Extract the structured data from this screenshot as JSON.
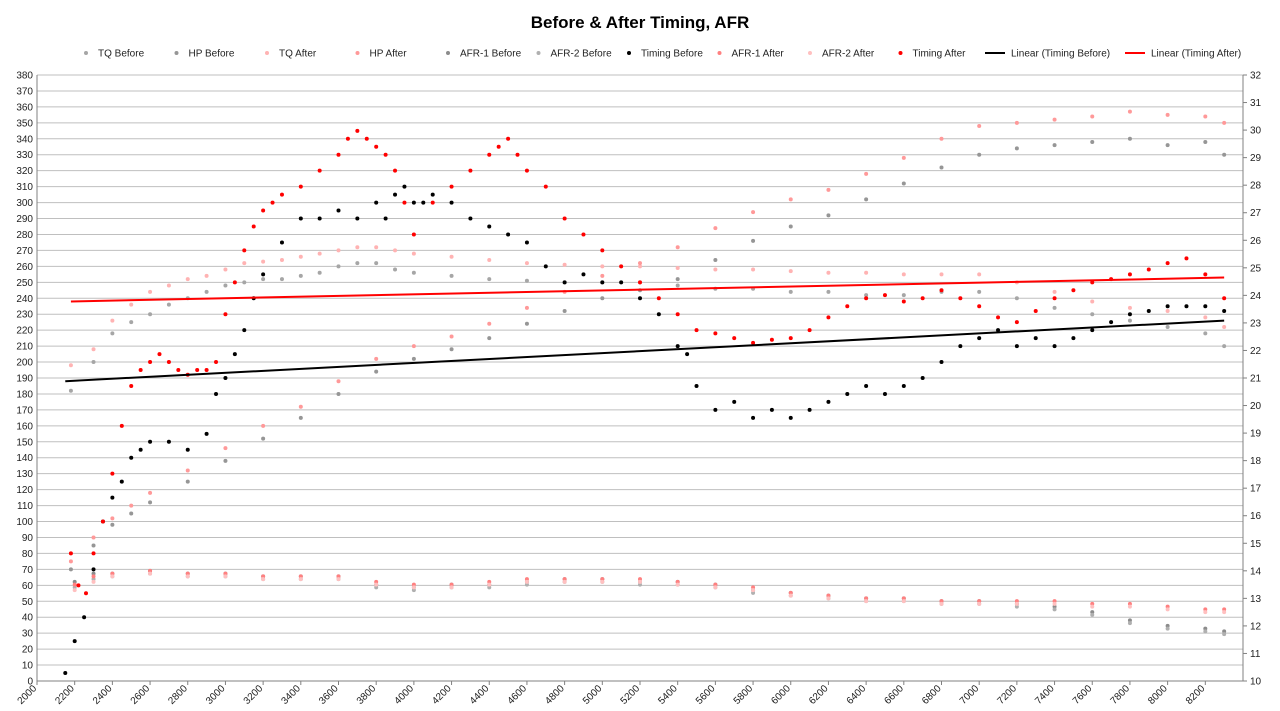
{
  "chart_data": {
    "type": "scatter",
    "title": "Before & After Timing, AFR",
    "xlabel": "",
    "ylabel": "",
    "x_range": [
      2000,
      8400
    ],
    "x_ticks": [
      2000,
      2200,
      2400,
      2600,
      2800,
      3000,
      3200,
      3400,
      3600,
      3800,
      4000,
      4200,
      4400,
      4600,
      4800,
      5000,
      5200,
      5400,
      5600,
      5800,
      6000,
      6200,
      6400,
      6600,
      6800,
      7000,
      7200,
      7400,
      7600,
      7800,
      8000,
      8200
    ],
    "y_left_range": [
      0,
      380
    ],
    "y_left_ticks": [
      0,
      10,
      20,
      30,
      40,
      50,
      60,
      70,
      80,
      90,
      100,
      110,
      120,
      130,
      140,
      150,
      160,
      170,
      180,
      190,
      200,
      210,
      220,
      230,
      240,
      250,
      260,
      270,
      280,
      290,
      300,
      310,
      320,
      330,
      340,
      350,
      360,
      370,
      380
    ],
    "y_right_range": [
      10,
      32
    ],
    "y_right_ticks": [
      10,
      11,
      12,
      13,
      14,
      15,
      16,
      17,
      18,
      19,
      20,
      21,
      22,
      23,
      24,
      25,
      26,
      27,
      28,
      29,
      30,
      31,
      32
    ],
    "grid": "horizontal",
    "legend_position": "top",
    "series": [
      {
        "name": "TQ Before",
        "color": "#a6a6a6",
        "axis": "left",
        "x": [
          2180,
          2300,
          2400,
          2500,
          2600,
          2700,
          2800,
          2900,
          3000,
          3100,
          3200,
          3300,
          3400,
          3500,
          3600,
          3700,
          3800,
          3900,
          4000,
          4200,
          4400,
          4600,
          4800,
          5000,
          5200,
          5400,
          5600,
          5800,
          6000,
          6200,
          6400,
          6600,
          6800,
          7000,
          7200,
          7400,
          7600,
          7800,
          8000,
          8200,
          8300
        ],
        "y": [
          182,
          200,
          218,
          225,
          230,
          236,
          240,
          244,
          248,
          250,
          252,
          252,
          254,
          256,
          260,
          262,
          262,
          258,
          256,
          254,
          252,
          251,
          250,
          250,
          250,
          248,
          246,
          246,
          244,
          244,
          242,
          242,
          244,
          244,
          240,
          234,
          230,
          226,
          222,
          218,
          210
        ]
      },
      {
        "name": "HP Before",
        "color": "#969696",
        "axis": "left",
        "x": [
          2180,
          2300,
          2400,
          2500,
          2600,
          2800,
          3000,
          3200,
          3400,
          3600,
          3800,
          4000,
          4200,
          4400,
          4600,
          4800,
          5000,
          5200,
          5400,
          5600,
          5800,
          6000,
          6200,
          6400,
          6600,
          6800,
          7000,
          7200,
          7400,
          7600,
          7800,
          8000,
          8200,
          8300
        ],
        "y": [
          70,
          85,
          98,
          105,
          112,
          125,
          138,
          152,
          165,
          180,
          194,
          202,
          208,
          215,
          224,
          232,
          240,
          245,
          252,
          264,
          276,
          285,
          292,
          302,
          312,
          322,
          330,
          334,
          336,
          338,
          340,
          336,
          338,
          330
        ]
      },
      {
        "name": "TQ After",
        "color": "#ffb3b3",
        "axis": "left",
        "x": [
          2180,
          2300,
          2400,
          2500,
          2600,
          2700,
          2800,
          2900,
          3000,
          3100,
          3200,
          3300,
          3400,
          3500,
          3600,
          3700,
          3800,
          3900,
          4000,
          4200,
          4400,
          4600,
          4800,
          5000,
          5200,
          5400,
          5600,
          5800,
          6000,
          6200,
          6400,
          6600,
          6800,
          7000,
          7200,
          7400,
          7600,
          7800,
          8000,
          8200,
          8300
        ],
        "y": [
          198,
          208,
          226,
          236,
          244,
          248,
          252,
          254,
          258,
          262,
          263,
          264,
          266,
          268,
          270,
          272,
          272,
          270,
          268,
          266,
          264,
          262,
          261,
          260,
          260,
          259,
          258,
          258,
          257,
          256,
          256,
          255,
          255,
          255,
          250,
          244,
          238,
          234,
          232,
          228,
          222
        ]
      },
      {
        "name": "HP After",
        "color": "#ff9999",
        "axis": "left",
        "x": [
          2180,
          2300,
          2400,
          2500,
          2600,
          2800,
          3000,
          3200,
          3400,
          3600,
          3800,
          4000,
          4200,
          4400,
          4600,
          4800,
          5000,
          5200,
          5400,
          5600,
          5800,
          6000,
          6200,
          6400,
          6600,
          6800,
          7000,
          7200,
          7400,
          7600,
          7800,
          8000,
          8200,
          8300
        ],
        "y": [
          75,
          90,
          102,
          110,
          118,
          132,
          146,
          160,
          172,
          188,
          202,
          210,
          216,
          224,
          234,
          244,
          254,
          262,
          272,
          284,
          294,
          302,
          308,
          318,
          328,
          340,
          348,
          350,
          352,
          354,
          357,
          355,
          354,
          350
        ]
      },
      {
        "name": "AFR-1 Before",
        "color": "#8c8c8c",
        "axis": "right",
        "x": [
          2200,
          2300,
          2400,
          2600,
          2800,
          3000,
          3200,
          3400,
          3600,
          3800,
          4000,
          4200,
          4400,
          4600,
          4800,
          5000,
          5200,
          5400,
          5600,
          5800,
          6000,
          6200,
          6400,
          6600,
          6800,
          7000,
          7200,
          7400,
          7600,
          7800,
          8000,
          8200,
          8300
        ],
        "y": [
          13.6,
          13.9,
          13.9,
          14.0,
          13.9,
          13.9,
          13.8,
          13.8,
          13.8,
          13.5,
          13.4,
          13.5,
          13.5,
          13.6,
          13.7,
          13.7,
          13.6,
          13.6,
          13.5,
          13.3,
          13.2,
          13.1,
          13.0,
          13.0,
          12.9,
          12.9,
          12.8,
          12.7,
          12.5,
          12.2,
          12.0,
          11.9,
          11.8
        ]
      },
      {
        "name": "AFR-2 Before",
        "color": "#b0b0b0",
        "axis": "right",
        "x": [
          2200,
          2300,
          2400,
          2600,
          2800,
          3000,
          3200,
          3400,
          3600,
          3800,
          4000,
          4200,
          4400,
          4600,
          4800,
          5000,
          5200,
          5400,
          5600,
          5800,
          6000,
          6200,
          6400,
          6600,
          6800,
          7000,
          7200,
          7400,
          7600,
          7800,
          8000,
          8200,
          8300
        ],
        "y": [
          13.4,
          13.7,
          13.8,
          13.9,
          13.8,
          13.8,
          13.7,
          13.7,
          13.7,
          13.4,
          13.3,
          13.4,
          13.4,
          13.5,
          13.6,
          13.6,
          13.5,
          13.5,
          13.4,
          13.2,
          13.1,
          13.0,
          12.9,
          12.9,
          12.8,
          12.8,
          12.7,
          12.6,
          12.4,
          12.1,
          11.9,
          11.8,
          11.7
        ]
      },
      {
        "name": "Timing Before",
        "color": "#000000",
        "axis": "left",
        "x": [
          2150,
          2200,
          2250,
          2300,
          2350,
          2400,
          2450,
          2500,
          2550,
          2600,
          2700,
          2800,
          2900,
          2950,
          3000,
          3050,
          3100,
          3150,
          3200,
          3300,
          3400,
          3500,
          3600,
          3700,
          3800,
          3850,
          3900,
          3950,
          4000,
          4050,
          4100,
          4200,
          4300,
          4400,
          4500,
          4600,
          4700,
          4800,
          4900,
          5000,
          5100,
          5200,
          5300,
          5400,
          5450,
          5500,
          5600,
          5700,
          5800,
          5900,
          6000,
          6100,
          6200,
          6300,
          6400,
          6500,
          6600,
          6700,
          6800,
          6900,
          7000,
          7100,
          7200,
          7300,
          7400,
          7500,
          7600,
          7700,
          7800,
          7900,
          8000,
          8100,
          8200,
          8300
        ],
        "y": [
          5,
          25,
          40,
          70,
          100,
          115,
          125,
          140,
          145,
          150,
          150,
          145,
          155,
          180,
          190,
          205,
          220,
          240,
          255,
          275,
          290,
          290,
          295,
          290,
          300,
          290,
          305,
          310,
          300,
          300,
          305,
          300,
          290,
          285,
          280,
          275,
          260,
          250,
          255,
          250,
          250,
          240,
          230,
          210,
          205,
          185,
          170,
          175,
          165,
          170,
          165,
          170,
          175,
          180,
          185,
          180,
          185,
          190,
          200,
          210,
          215,
          220,
          210,
          215,
          210,
          215,
          220,
          225,
          230,
          232,
          235,
          235,
          235,
          232
        ]
      },
      {
        "name": "AFR-1 After",
        "color": "#ff8080",
        "axis": "right",
        "x": [
          2200,
          2300,
          2400,
          2600,
          2800,
          3000,
          3200,
          3400,
          3600,
          3800,
          4000,
          4200,
          4400,
          4600,
          4800,
          5000,
          5200,
          5400,
          5600,
          5800,
          6000,
          6200,
          6400,
          6600,
          6800,
          7000,
          7200,
          7400,
          7600,
          7800,
          8000,
          8200,
          8300
        ],
        "y": [
          13.5,
          13.8,
          13.9,
          14.0,
          13.9,
          13.9,
          13.8,
          13.8,
          13.8,
          13.6,
          13.5,
          13.5,
          13.6,
          13.7,
          13.7,
          13.7,
          13.7,
          13.6,
          13.5,
          13.4,
          13.2,
          13.1,
          13.0,
          13.0,
          12.9,
          12.9,
          12.9,
          12.9,
          12.8,
          12.8,
          12.7,
          12.6,
          12.6
        ]
      },
      {
        "name": "AFR-2 After",
        "color": "#ffc0c0",
        "axis": "right",
        "x": [
          2200,
          2300,
          2400,
          2600,
          2800,
          3000,
          3200,
          3400,
          3600,
          3800,
          4000,
          4200,
          4400,
          4600,
          4800,
          5000,
          5200,
          5400,
          5600,
          5800,
          6000,
          6200,
          6400,
          6600,
          6800,
          7000,
          7200,
          7400,
          7600,
          7800,
          8000,
          8200,
          8300
        ],
        "y": [
          13.3,
          13.6,
          13.8,
          13.9,
          13.8,
          13.8,
          13.7,
          13.7,
          13.7,
          13.5,
          13.4,
          13.4,
          13.5,
          13.6,
          13.6,
          13.6,
          13.6,
          13.5,
          13.4,
          13.3,
          13.1,
          13.0,
          12.9,
          12.9,
          12.8,
          12.8,
          12.8,
          12.8,
          12.7,
          12.7,
          12.6,
          12.5,
          12.5
        ]
      },
      {
        "name": "Timing After",
        "color": "#ff0000",
        "axis": "left",
        "x": [
          2180,
          2220,
          2260,
          2300,
          2350,
          2400,
          2450,
          2500,
          2550,
          2600,
          2650,
          2700,
          2750,
          2800,
          2850,
          2900,
          2950,
          3000,
          3050,
          3100,
          3150,
          3200,
          3250,
          3300,
          3400,
          3500,
          3600,
          3650,
          3700,
          3750,
          3800,
          3850,
          3900,
          3950,
          4000,
          4100,
          4200,
          4300,
          4400,
          4450,
          4500,
          4550,
          4600,
          4700,
          4800,
          4900,
          5000,
          5100,
          5200,
          5300,
          5400,
          5500,
          5600,
          5700,
          5800,
          5900,
          6000,
          6100,
          6200,
          6300,
          6400,
          6500,
          6600,
          6700,
          6800,
          6900,
          7000,
          7100,
          7200,
          7300,
          7400,
          7500,
          7600,
          7700,
          7800,
          7900,
          8000,
          8100,
          8200,
          8300
        ],
        "y": [
          80,
          60,
          55,
          80,
          100,
          130,
          160,
          185,
          195,
          200,
          205,
          200,
          195,
          192,
          195,
          195,
          200,
          230,
          250,
          270,
          285,
          295,
          300,
          305,
          310,
          320,
          330,
          340,
          345,
          340,
          335,
          330,
          320,
          300,
          280,
          300,
          310,
          320,
          330,
          335,
          340,
          330,
          320,
          310,
          290,
          280,
          270,
          260,
          250,
          240,
          230,
          220,
          218,
          215,
          212,
          214,
          215,
          220,
          228,
          235,
          240,
          242,
          238,
          240,
          245,
          240,
          235,
          228,
          225,
          232,
          240,
          245,
          250,
          252,
          255,
          258,
          262,
          265,
          255,
          240
        ]
      },
      {
        "name": "Linear (Timing Before)",
        "color": "#000000",
        "axis": "left",
        "line": true,
        "x": [
          2150,
          8300
        ],
        "y": [
          188,
          226
        ]
      },
      {
        "name": "Linear (Timing After)",
        "color": "#ff0000",
        "axis": "left",
        "line": true,
        "x": [
          2180,
          8300
        ],
        "y": [
          238,
          253
        ]
      }
    ]
  }
}
